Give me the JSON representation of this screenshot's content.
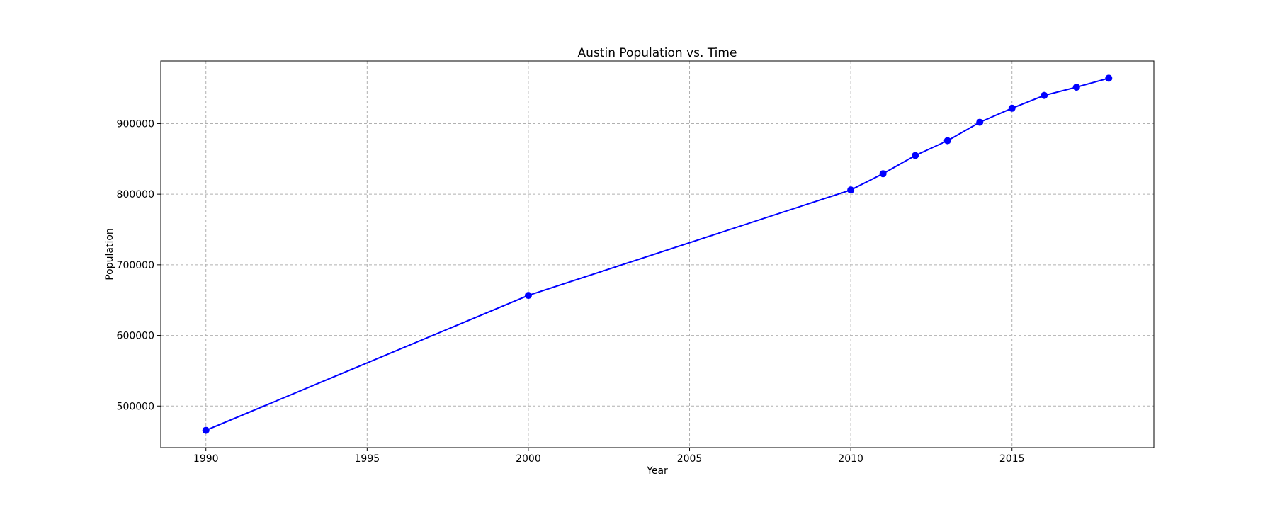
{
  "chart_data": {
    "type": "line",
    "title": "Austin Population vs. Time",
    "xlabel": "Year",
    "ylabel": "Population",
    "x": [
      1990,
      2000,
      2010,
      2011,
      2012,
      2013,
      2014,
      2015,
      2016,
      2017,
      2018
    ],
    "series": [
      {
        "values": [
          465600,
          656600,
          806000,
          829000,
          854800,
          875800,
          901800,
          921700,
          939900,
          951600,
          964300
        ],
        "color": "#0000ff",
        "marker": "circle"
      }
    ],
    "xlim": [
      1988.6,
      2019.4
    ],
    "ylim": [
      441100,
      988700
    ],
    "xticks": [
      {
        "value": 1990,
        "label": "1990"
      },
      {
        "value": 1995,
        "label": "1995"
      },
      {
        "value": 2000,
        "label": "2000"
      },
      {
        "value": 2005,
        "label": "2005"
      },
      {
        "value": 2010,
        "label": "2010"
      },
      {
        "value": 2015,
        "label": "2015"
      }
    ],
    "yticks": [
      {
        "value": 500000,
        "label": "500000"
      },
      {
        "value": 600000,
        "label": "600000"
      },
      {
        "value": 700000,
        "label": "700000"
      },
      {
        "value": 800000,
        "label": "800000"
      },
      {
        "value": 900000,
        "label": "900000"
      }
    ],
    "grid": true
  }
}
